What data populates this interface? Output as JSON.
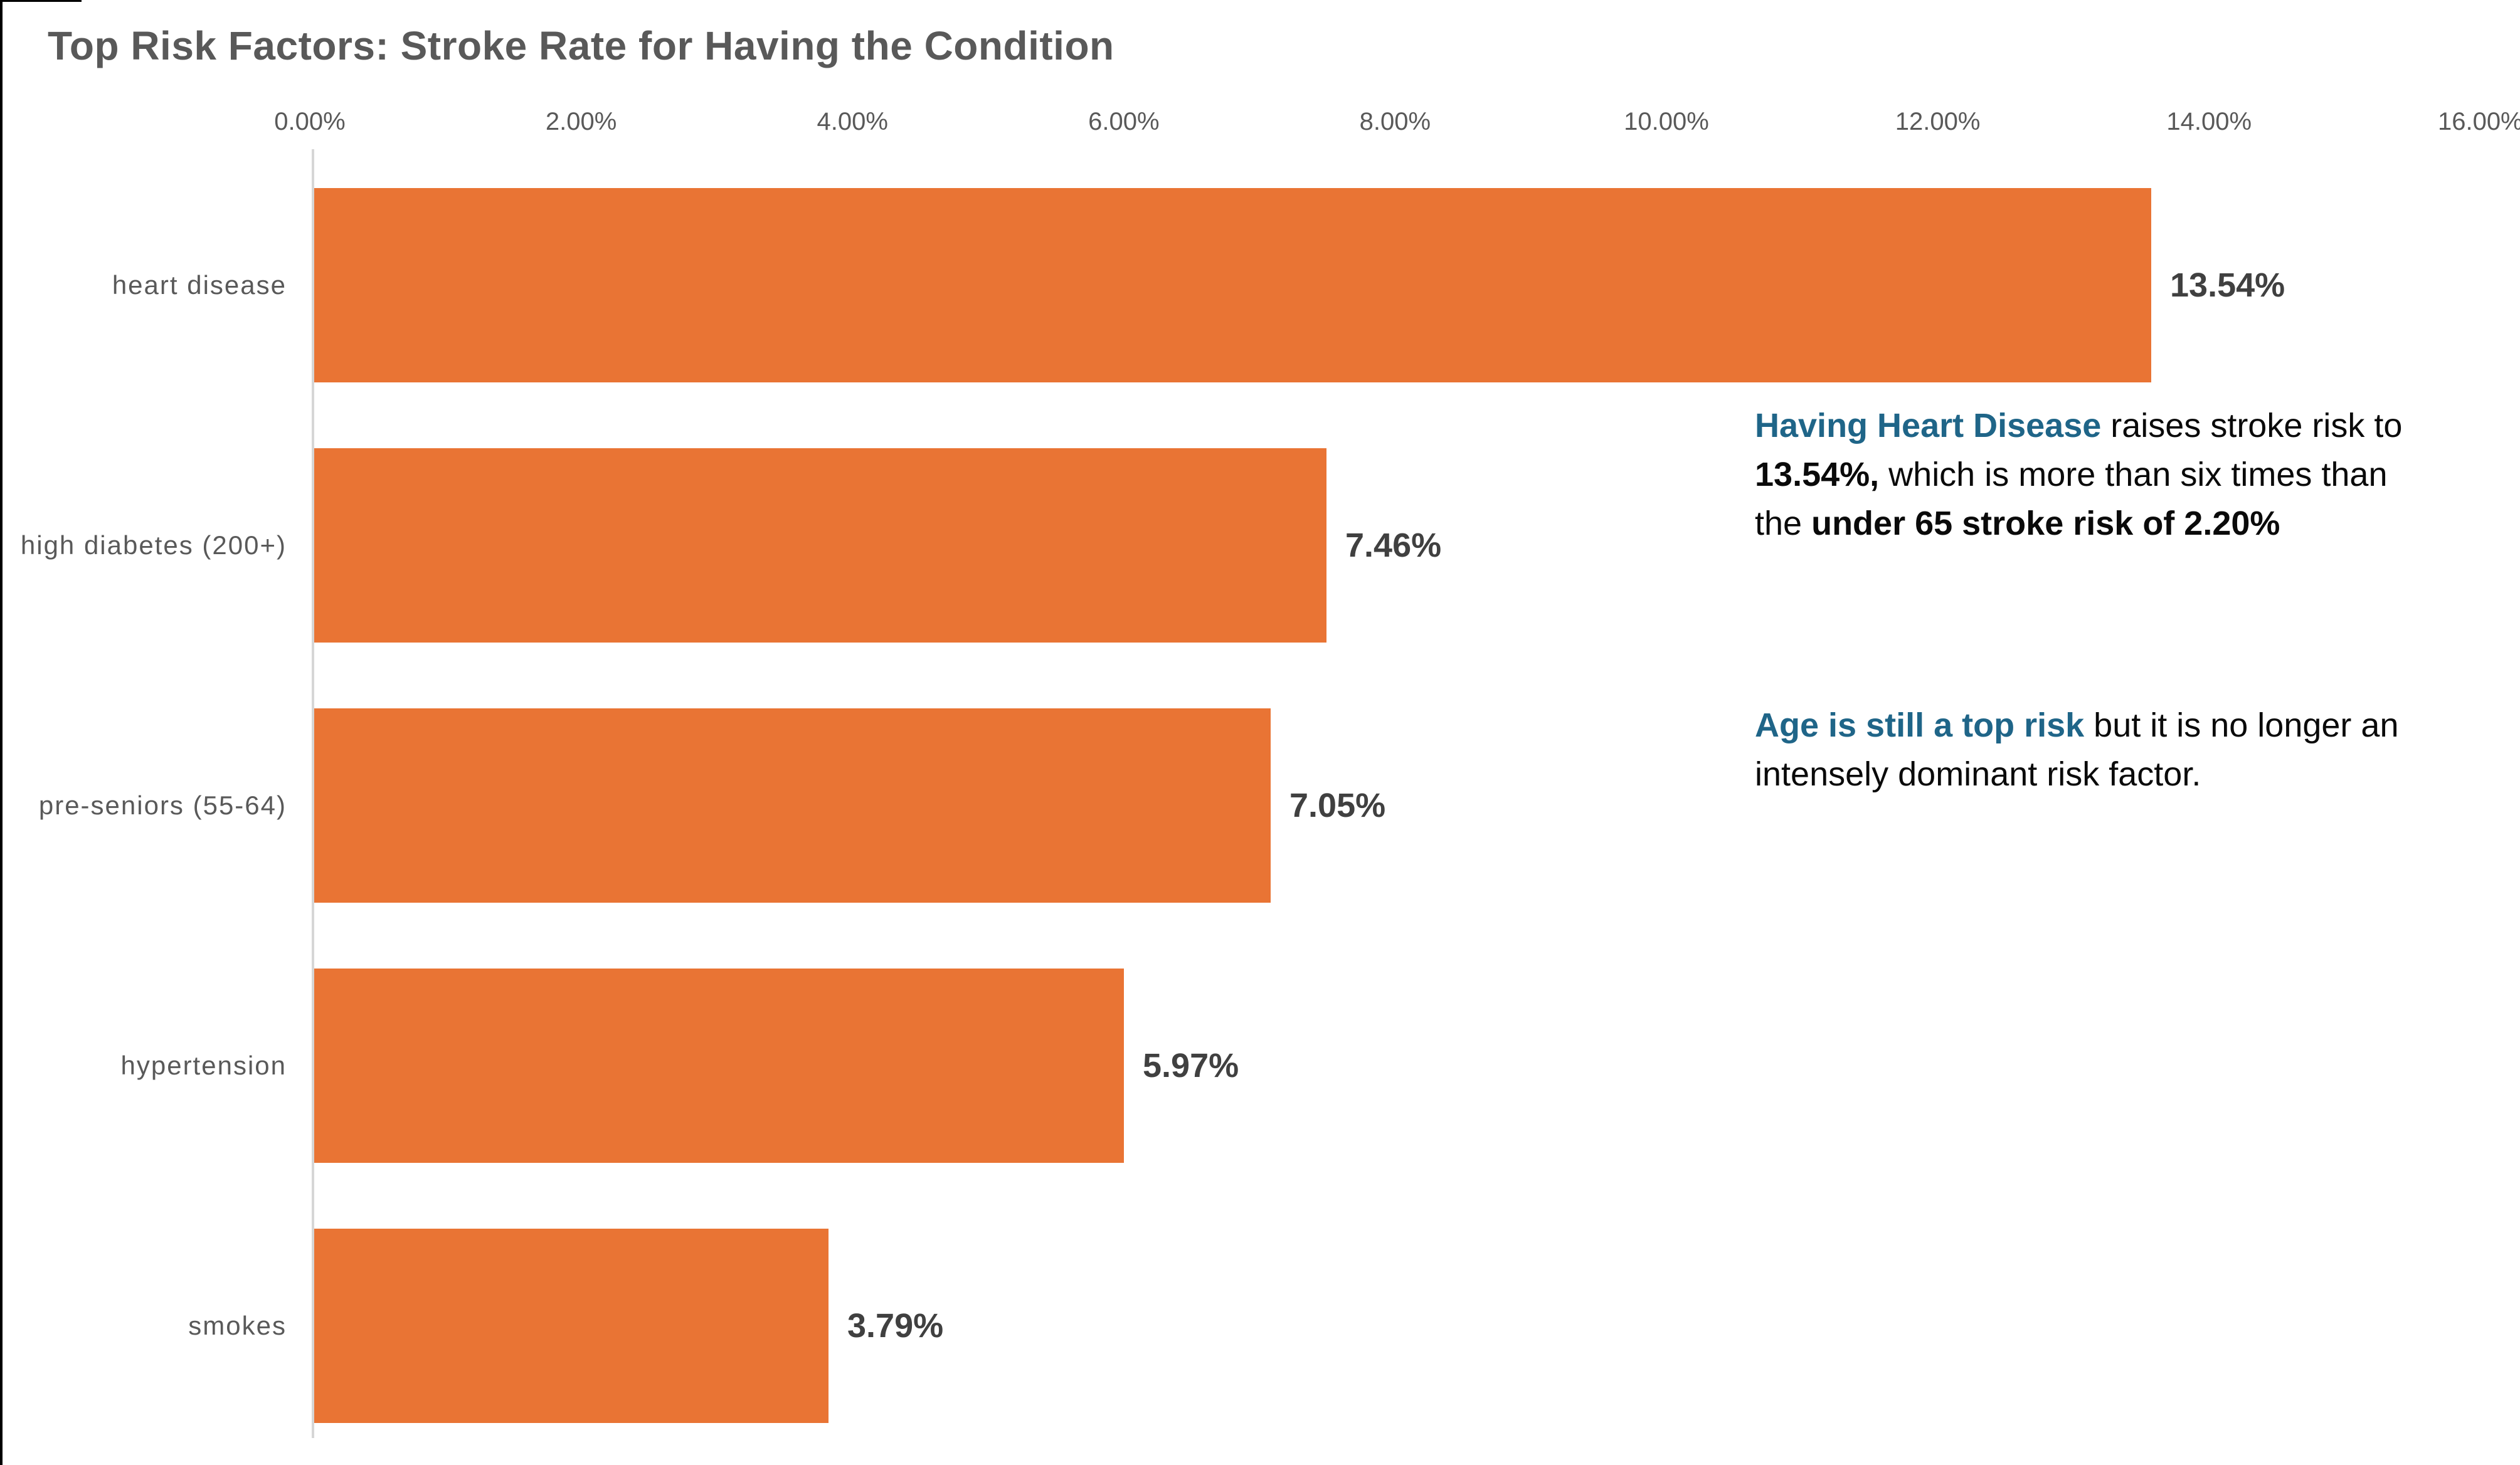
{
  "title": "Top Risk Factors: Stroke Rate for Having the Condition",
  "colors": {
    "bar_orange": "#E97434",
    "title_gray": "#595959",
    "label_gray": "#595959",
    "value_dark": "#404040",
    "accent_blue": "#1F6588",
    "axis_line_gray": "#D6D6D6",
    "text_black": "#0a0a0a"
  },
  "chart_data": {
    "type": "bar",
    "orientation": "horizontal",
    "title": "Top Risk Factors: Stroke Rate for Having the Condition",
    "categories": [
      "heart disease",
      "high diabetes (200+)",
      "pre-seniors (55-64)",
      "hypertension",
      "smokes"
    ],
    "values": [
      13.54,
      7.46,
      7.05,
      5.97,
      3.79
    ],
    "value_labels": [
      "13.54%",
      "7.46%",
      "7.05%",
      "5.97%",
      "3.79%"
    ],
    "x_ticks": [
      "0.00%",
      "2.00%",
      "4.00%",
      "6.00%",
      "8.00%",
      "10.00%",
      "12.00%",
      "14.00%",
      "16.00%"
    ],
    "xlim": [
      0,
      16
    ],
    "xlabel": "",
    "ylabel": "",
    "grid": false,
    "legend": false,
    "bar_color": "#E97434"
  },
  "annotations": [
    {
      "name": "heart-disease-note",
      "lines": [
        [
          {
            "t": "Having Heart Disease",
            "style": "blue-bold"
          },
          {
            "t": " raises stroke risk to",
            "style": "normal"
          }
        ],
        [
          {
            "t": "13.54%,",
            "style": "bold"
          },
          {
            "t": " which is more than six times than",
            "style": "normal"
          }
        ],
        [
          {
            "t": "the ",
            "style": "normal"
          },
          {
            "t": "under 65 stroke risk of 2.20%",
            "style": "bold"
          }
        ]
      ]
    },
    {
      "name": "age-risk-note",
      "lines": [
        [
          {
            "t": "Age is still a top risk",
            "style": "blue-bold"
          },
          {
            "t": " but it is no longer an",
            "style": "normal"
          }
        ],
        [
          {
            "t": "intensely dominant risk factor.",
            "style": "normal"
          }
        ]
      ]
    }
  ]
}
